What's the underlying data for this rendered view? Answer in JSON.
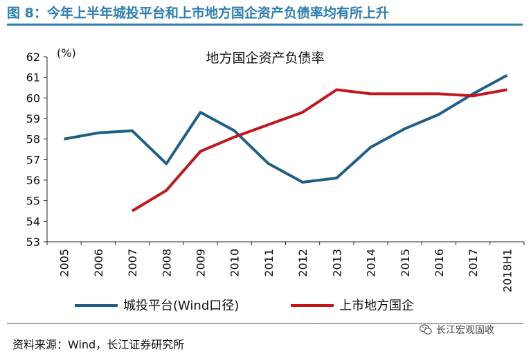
{
  "figure": {
    "title": "图 8：今年上半年城投平台和上市地方国企资产负债率均有所上升",
    "source": "资料来源：Wind，长江证券研究所",
    "watermark": "长江宏观固收"
  },
  "chart_data": {
    "type": "line",
    "title": "地方国企资产负债率",
    "unit_label": "(%)",
    "categories": [
      "2005",
      "2006",
      "2007",
      "2008",
      "2009",
      "2010",
      "2011",
      "2012",
      "2013",
      "2014",
      "2015",
      "2016",
      "2017",
      "2018H1"
    ],
    "yticks": [
      "53",
      "54",
      "55",
      "56",
      "57",
      "58",
      "59",
      "60",
      "61",
      "62"
    ],
    "ylim": [
      53,
      62
    ],
    "grid": false,
    "legend_position": "bottom",
    "series": [
      {
        "name": "城投平台(Wind口径)",
        "color": "#1f5f86",
        "values": [
          58.0,
          58.3,
          58.4,
          56.8,
          59.3,
          58.4,
          56.8,
          55.9,
          56.1,
          57.6,
          58.5,
          59.2,
          60.2,
          61.1
        ]
      },
      {
        "name": "上市地方国企",
        "color": "#c0161c",
        "values": [
          null,
          null,
          54.5,
          55.5,
          57.4,
          58.1,
          58.7,
          59.3,
          60.4,
          60.2,
          60.2,
          60.2,
          60.1,
          60.4
        ]
      }
    ]
  }
}
